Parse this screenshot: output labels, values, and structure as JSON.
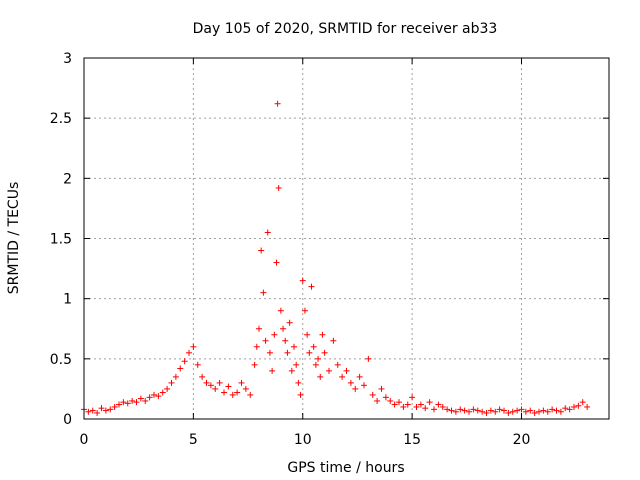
{
  "chart_data": {
    "type": "scatter",
    "title": "Day 105 of 2020, SRMTID for receiver ab33",
    "xlabel": "GPS time / hours",
    "ylabel": "SRMTID / TECUs",
    "xlim": [
      0,
      24
    ],
    "ylim": [
      0,
      3
    ],
    "xticks": [
      0,
      5,
      10,
      15,
      20
    ],
    "xtick_labels": [
      "0",
      "5",
      "10",
      "15",
      "20"
    ],
    "yticks": [
      0,
      0.5,
      1,
      1.5,
      2,
      2.5,
      3
    ],
    "ytick_labels": [
      "0",
      "0.5",
      "1",
      "1.5",
      "2",
      "2.5",
      "3"
    ],
    "grid": true,
    "marker": "+",
    "series": [
      {
        "name": "SRMTID",
        "color": "#ff0000",
        "x": [
          0.0,
          0.2,
          0.4,
          0.6,
          0.8,
          1.0,
          1.2,
          1.4,
          1.6,
          1.8,
          2.0,
          2.2,
          2.4,
          2.6,
          2.8,
          3.0,
          3.2,
          3.4,
          3.6,
          3.8,
          4.0,
          4.2,
          4.4,
          4.6,
          4.8,
          5.0,
          5.2,
          5.4,
          5.6,
          5.8,
          6.0,
          6.2,
          6.4,
          6.6,
          6.8,
          7.0,
          7.2,
          7.4,
          7.6,
          7.8,
          7.9,
          8.0,
          8.1,
          8.2,
          8.3,
          8.4,
          8.5,
          8.6,
          8.7,
          8.8,
          8.85,
          8.9,
          9.0,
          9.1,
          9.2,
          9.3,
          9.4,
          9.5,
          9.6,
          9.7,
          9.8,
          9.9,
          10.0,
          10.1,
          10.2,
          10.3,
          10.4,
          10.5,
          10.6,
          10.7,
          10.8,
          10.9,
          11.0,
          11.2,
          11.4,
          11.6,
          11.8,
          12.0,
          12.2,
          12.4,
          12.6,
          12.8,
          13.0,
          13.2,
          13.4,
          13.6,
          13.8,
          14.0,
          14.2,
          14.4,
          14.6,
          14.8,
          15.0,
          15.2,
          15.4,
          15.6,
          15.8,
          16.0,
          16.2,
          16.4,
          16.6,
          16.8,
          17.0,
          17.2,
          17.4,
          17.6,
          17.8,
          18.0,
          18.2,
          18.4,
          18.6,
          18.8,
          19.0,
          19.2,
          19.4,
          19.6,
          19.8,
          20.0,
          20.2,
          20.4,
          20.6,
          20.8,
          21.0,
          21.2,
          21.4,
          21.6,
          21.8,
          22.0,
          22.2,
          22.4,
          22.6,
          22.8,
          23.0
        ],
        "y": [
          0.08,
          0.06,
          0.07,
          0.05,
          0.09,
          0.07,
          0.08,
          0.1,
          0.12,
          0.14,
          0.13,
          0.15,
          0.14,
          0.17,
          0.15,
          0.18,
          0.2,
          0.19,
          0.22,
          0.25,
          0.3,
          0.35,
          0.42,
          0.48,
          0.55,
          0.6,
          0.45,
          0.35,
          0.3,
          0.28,
          0.25,
          0.3,
          0.22,
          0.27,
          0.2,
          0.22,
          0.3,
          0.25,
          0.2,
          0.45,
          0.6,
          0.75,
          1.4,
          1.05,
          0.65,
          1.55,
          0.55,
          0.4,
          0.7,
          1.3,
          2.62,
          1.92,
          0.9,
          0.75,
          0.65,
          0.55,
          0.8,
          0.4,
          0.6,
          0.45,
          0.3,
          0.2,
          1.15,
          0.9,
          0.7,
          0.55,
          1.1,
          0.6,
          0.45,
          0.5,
          0.35,
          0.7,
          0.55,
          0.4,
          0.65,
          0.45,
          0.35,
          0.4,
          0.3,
          0.25,
          0.35,
          0.28,
          0.5,
          0.2,
          0.15,
          0.25,
          0.18,
          0.15,
          0.12,
          0.14,
          0.1,
          0.12,
          0.18,
          0.1,
          0.12,
          0.09,
          0.14,
          0.08,
          0.12,
          0.1,
          0.08,
          0.07,
          0.06,
          0.08,
          0.07,
          0.06,
          0.08,
          0.07,
          0.06,
          0.05,
          0.07,
          0.06,
          0.08,
          0.07,
          0.05,
          0.06,
          0.07,
          0.08,
          0.06,
          0.07,
          0.05,
          0.06,
          0.07,
          0.06,
          0.08,
          0.07,
          0.06,
          0.09,
          0.08,
          0.1,
          0.11,
          0.14,
          0.1
        ]
      }
    ]
  }
}
